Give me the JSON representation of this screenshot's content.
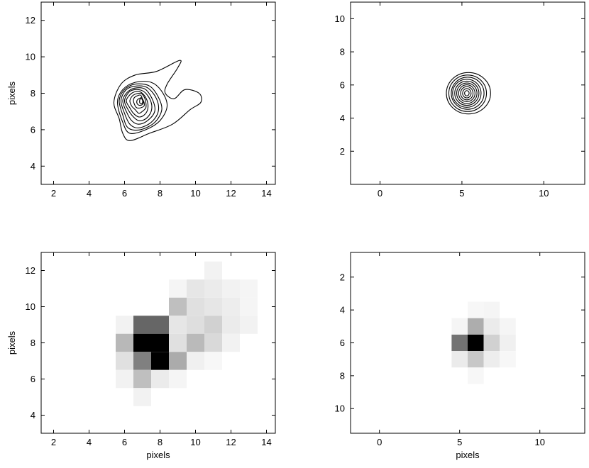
{
  "chart_data": [
    {
      "type": "contour",
      "xlabel": "",
      "ylabel": "pixels",
      "xlim": [
        1.3,
        14.5
      ],
      "ylim": [
        3,
        13
      ],
      "xticks": [
        2,
        4,
        6,
        8,
        10,
        12,
        14
      ],
      "yticks": [
        4,
        6,
        8,
        10,
        12
      ],
      "contours": [
        {
          "level": 1,
          "points": [
            [
              5.4,
              7.5
            ],
            [
              5.8,
              8.5
            ],
            [
              6.6,
              9.0
            ],
            [
              7.8,
              9.2
            ],
            [
              9.1,
              9.8
            ],
            [
              9.0,
              9.4
            ],
            [
              8.4,
              8.5
            ],
            [
              8.3,
              8.0
            ],
            [
              8.8,
              7.7
            ],
            [
              9.4,
              8.2
            ],
            [
              10.2,
              8.0
            ],
            [
              10.3,
              7.5
            ],
            [
              9.7,
              7.1
            ],
            [
              8.7,
              6.3
            ],
            [
              7.4,
              5.8
            ],
            [
              6.3,
              5.4
            ],
            [
              5.9,
              5.8
            ],
            [
              5.7,
              6.6
            ]
          ]
        },
        {
          "level": 2,
          "points": [
            [
              5.6,
              7.5
            ],
            [
              5.9,
              8.2
            ],
            [
              6.6,
              8.6
            ],
            [
              7.5,
              8.6
            ],
            [
              8.1,
              8.1
            ],
            [
              8.4,
              7.3
            ],
            [
              8.0,
              6.5
            ],
            [
              7.2,
              6.0
            ],
            [
              6.3,
              5.8
            ],
            [
              5.9,
              6.4
            ]
          ]
        },
        {
          "level": 3,
          "points": [
            [
              5.7,
              7.6
            ],
            [
              6.0,
              8.2
            ],
            [
              6.6,
              8.5
            ],
            [
              7.4,
              8.4
            ],
            [
              7.9,
              7.8
            ],
            [
              8.1,
              7.1
            ],
            [
              7.7,
              6.4
            ],
            [
              6.9,
              6.0
            ],
            [
              6.2,
              6.1
            ],
            [
              5.9,
              6.8
            ]
          ]
        },
        {
          "level": 4,
          "points": [
            [
              5.8,
              7.6
            ],
            [
              6.1,
              8.2
            ],
            [
              6.7,
              8.4
            ],
            [
              7.3,
              8.3
            ],
            [
              7.8,
              7.7
            ],
            [
              7.9,
              7.0
            ],
            [
              7.5,
              6.4
            ],
            [
              6.8,
              6.1
            ],
            [
              6.3,
              6.3
            ],
            [
              6.0,
              6.9
            ]
          ]
        },
        {
          "level": 5,
          "points": [
            [
              5.9,
              7.6
            ],
            [
              6.2,
              8.1
            ],
            [
              6.7,
              8.3
            ],
            [
              7.2,
              8.2
            ],
            [
              7.6,
              7.6
            ],
            [
              7.7,
              7.0
            ],
            [
              7.3,
              6.5
            ],
            [
              6.8,
              6.3
            ],
            [
              6.4,
              6.5
            ],
            [
              6.1,
              7.0
            ]
          ]
        },
        {
          "level": 6,
          "points": [
            [
              6.0,
              7.6
            ],
            [
              6.3,
              8.1
            ],
            [
              6.8,
              8.2
            ],
            [
              7.2,
              8.0
            ],
            [
              7.5,
              7.5
            ],
            [
              7.5,
              7.0
            ],
            [
              7.2,
              6.6
            ],
            [
              6.8,
              6.5
            ],
            [
              6.5,
              6.7
            ],
            [
              6.2,
              7.1
            ]
          ]
        },
        {
          "level": 7,
          "points": [
            [
              6.1,
              7.6
            ],
            [
              6.4,
              8.0
            ],
            [
              6.8,
              8.1
            ],
            [
              7.1,
              7.9
            ],
            [
              7.3,
              7.5
            ],
            [
              7.3,
              7.1
            ],
            [
              7.1,
              6.8
            ],
            [
              6.8,
              6.7
            ],
            [
              6.5,
              6.9
            ],
            [
              6.3,
              7.2
            ]
          ]
        },
        {
          "level": 8,
          "points": [
            [
              6.3,
              7.6
            ],
            [
              6.5,
              7.9
            ],
            [
              6.9,
              8.0
            ],
            [
              7.1,
              7.8
            ],
            [
              7.2,
              7.5
            ],
            [
              7.2,
              7.2
            ],
            [
              7.0,
              7.0
            ],
            [
              6.8,
              6.9
            ],
            [
              6.6,
              7.1
            ],
            [
              6.4,
              7.3
            ]
          ]
        },
        {
          "level": 9,
          "points": [
            [
              6.5,
              7.6
            ],
            [
              6.6,
              7.8
            ],
            [
              6.9,
              7.9
            ],
            [
              7.0,
              7.7
            ],
            [
              7.1,
              7.5
            ],
            [
              7.1,
              7.3
            ],
            [
              6.9,
              7.2
            ],
            [
              6.7,
              7.2
            ],
            [
              6.6,
              7.3
            ]
          ]
        },
        {
          "level": 10,
          "points": [
            [
              6.7,
              7.6
            ],
            [
              6.8,
              7.7
            ],
            [
              6.95,
              7.75
            ],
            [
              7.05,
              7.6
            ],
            [
              7.05,
              7.45
            ],
            [
              6.95,
              7.35
            ],
            [
              6.8,
              7.35
            ],
            [
              6.7,
              7.45
            ]
          ]
        },
        {
          "level": 11,
          "points": [
            [
              6.85,
              7.6
            ],
            [
              6.9,
              7.7
            ],
            [
              7.0,
              7.65
            ],
            [
              7.02,
              7.5
            ],
            [
              6.95,
              7.42
            ],
            [
              6.87,
              7.45
            ]
          ]
        }
      ]
    },
    {
      "type": "contour",
      "xlabel": "",
      "ylabel": "",
      "xlim": [
        -1.8,
        12.5
      ],
      "ylim": [
        0,
        11
      ],
      "xticks": [
        0,
        5,
        10
      ],
      "yticks": [
        2,
        4,
        6,
        8,
        10
      ],
      "contours": [
        {
          "level": 1,
          "center": [
            5.4,
            5.5
          ],
          "rx": 1.35,
          "ry": 1.25
        },
        {
          "level": 2,
          "center": [
            5.35,
            5.5
          ],
          "rx": 1.15,
          "ry": 1.1
        },
        {
          "level": 3,
          "center": [
            5.35,
            5.5
          ],
          "rx": 1.0,
          "ry": 0.97
        },
        {
          "level": 4,
          "center": [
            5.3,
            5.5
          ],
          "rx": 0.87,
          "ry": 0.85
        },
        {
          "level": 5,
          "center": [
            5.3,
            5.5
          ],
          "rx": 0.74,
          "ry": 0.73
        },
        {
          "level": 6,
          "center": [
            5.3,
            5.5
          ],
          "rx": 0.62,
          "ry": 0.62
        },
        {
          "level": 7,
          "center": [
            5.3,
            5.5
          ],
          "rx": 0.5,
          "ry": 0.51
        },
        {
          "level": 8,
          "center": [
            5.3,
            5.5
          ],
          "rx": 0.38,
          "ry": 0.4
        },
        {
          "level": 9,
          "center": [
            5.3,
            5.5
          ],
          "rx": 0.26,
          "ry": 0.28
        },
        {
          "level": 10,
          "center": [
            5.3,
            5.5
          ],
          "rx": 0.14,
          "ry": 0.16
        }
      ]
    },
    {
      "type": "heatmap",
      "xlabel": "pixels",
      "ylabel": "pixels",
      "xlim": [
        1.3,
        14.5
      ],
      "ylim": [
        3,
        13
      ],
      "xticks": [
        2,
        4,
        6,
        8,
        10,
        12,
        14
      ],
      "yticks": [
        4,
        6,
        8,
        10,
        12
      ],
      "cell": 1,
      "colormap": "gray-reversed",
      "cells": [
        {
          "x": 11,
          "y": 12,
          "v": 0.05
        },
        {
          "x": 9,
          "y": 11,
          "v": 0.04
        },
        {
          "x": 10,
          "y": 11,
          "v": 0.1
        },
        {
          "x": 11,
          "y": 11,
          "v": 0.08
        },
        {
          "x": 12,
          "y": 11,
          "v": 0.05
        },
        {
          "x": 13,
          "y": 11,
          "v": 0.04
        },
        {
          "x": 9,
          "y": 10,
          "v": 0.25
        },
        {
          "x": 10,
          "y": 10,
          "v": 0.12
        },
        {
          "x": 11,
          "y": 10,
          "v": 0.1
        },
        {
          "x": 12,
          "y": 10,
          "v": 0.07
        },
        {
          "x": 13,
          "y": 10,
          "v": 0.04
        },
        {
          "x": 6,
          "y": 9,
          "v": 0.05
        },
        {
          "x": 7,
          "y": 9,
          "v": 0.6
        },
        {
          "x": 8,
          "y": 9,
          "v": 0.6
        },
        {
          "x": 9,
          "y": 9,
          "v": 0.1
        },
        {
          "x": 10,
          "y": 9,
          "v": 0.13
        },
        {
          "x": 11,
          "y": 9,
          "v": 0.18
        },
        {
          "x": 12,
          "y": 9,
          "v": 0.08
        },
        {
          "x": 13,
          "y": 9,
          "v": 0.05
        },
        {
          "x": 6,
          "y": 8,
          "v": 0.28
        },
        {
          "x": 7,
          "y": 8,
          "v": 1.0
        },
        {
          "x": 8,
          "y": 8,
          "v": 1.0
        },
        {
          "x": 9,
          "y": 8,
          "v": 0.12
        },
        {
          "x": 10,
          "y": 8,
          "v": 0.27
        },
        {
          "x": 11,
          "y": 8,
          "v": 0.15
        },
        {
          "x": 12,
          "y": 8,
          "v": 0.05
        },
        {
          "x": 6,
          "y": 7,
          "v": 0.12
        },
        {
          "x": 7,
          "y": 7,
          "v": 0.5
        },
        {
          "x": 8,
          "y": 7,
          "v": 1.0
        },
        {
          "x": 9,
          "y": 7,
          "v": 0.33
        },
        {
          "x": 10,
          "y": 7,
          "v": 0.06
        },
        {
          "x": 11,
          "y": 7,
          "v": 0.03
        },
        {
          "x": 6,
          "y": 6,
          "v": 0.05
        },
        {
          "x": 7,
          "y": 6,
          "v": 0.25
        },
        {
          "x": 8,
          "y": 6,
          "v": 0.08
        },
        {
          "x": 9,
          "y": 6,
          "v": 0.04
        },
        {
          "x": 7,
          "y": 5,
          "v": 0.05
        }
      ]
    },
    {
      "type": "heatmap",
      "xlabel": "pixels",
      "ylabel": "",
      "xlim": [
        -1.8,
        12.8
      ],
      "ylim": [
        11.5,
        0.5
      ],
      "xticks": [
        0,
        5,
        10
      ],
      "yticks": [
        2,
        4,
        6,
        8,
        10
      ],
      "y_reversed": true,
      "cell": 1,
      "colormap": "gray-reversed",
      "cells": [
        {
          "x": 6,
          "y": 4,
          "v": 0.03
        },
        {
          "x": 7,
          "y": 4,
          "v": 0.04
        },
        {
          "x": 5,
          "y": 5,
          "v": 0.04
        },
        {
          "x": 6,
          "y": 5,
          "v": 0.32
        },
        {
          "x": 7,
          "y": 5,
          "v": 0.08
        },
        {
          "x": 8,
          "y": 5,
          "v": 0.04
        },
        {
          "x": 5,
          "y": 6,
          "v": 0.55
        },
        {
          "x": 6,
          "y": 6,
          "v": 1.0
        },
        {
          "x": 7,
          "y": 6,
          "v": 0.18
        },
        {
          "x": 8,
          "y": 6,
          "v": 0.06
        },
        {
          "x": 5,
          "y": 7,
          "v": 0.08
        },
        {
          "x": 6,
          "y": 7,
          "v": 0.22
        },
        {
          "x": 7,
          "y": 7,
          "v": 0.07
        },
        {
          "x": 8,
          "y": 7,
          "v": 0.03
        },
        {
          "x": 6,
          "y": 8,
          "v": 0.03
        }
      ]
    }
  ]
}
